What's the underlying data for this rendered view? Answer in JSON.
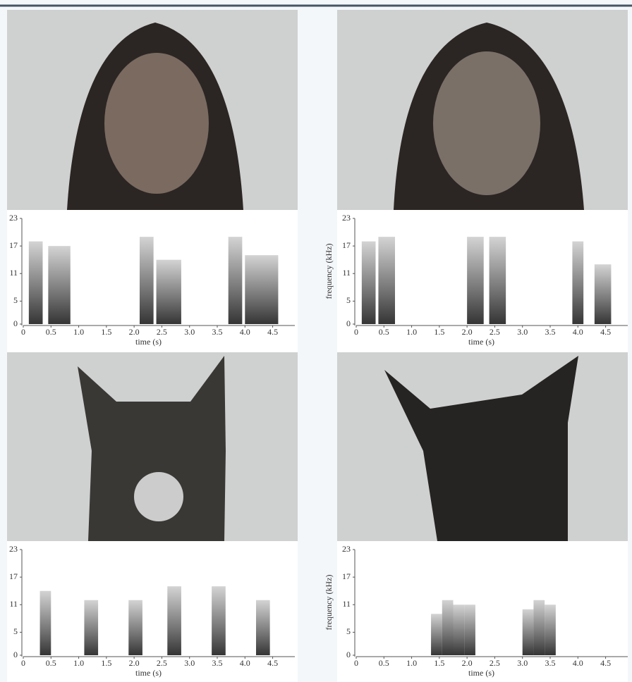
{
  "chart_data": [
    {
      "type": "spectrogram",
      "xlabel": "time (s)",
      "xlim": [
        0,
        4.9
      ],
      "ylim": [
        0,
        23
      ],
      "xticks": [
        0,
        0.5,
        {
          "value": 1,
          "label": "1.0"
        },
        1.5,
        {
          "value": 2,
          "label": "2.0"
        },
        2.5,
        {
          "value": 3,
          "label": "3.0"
        },
        3.5,
        {
          "value": 4,
          "label": "4.0"
        },
        4.5
      ],
      "yticks": [
        0,
        5,
        11,
        17,
        23
      ],
      "x_start": [
        0.1,
        0.45,
        2.1,
        2.4,
        3.7,
        4.0
      ],
      "x_end": [
        0.35,
        0.85,
        2.35,
        2.85,
        3.95,
        4.6
      ],
      "values": [
        18,
        17,
        19,
        14,
        19,
        15
      ]
    },
    {
      "type": "spectrogram",
      "xlabel": "time (s)",
      "ylabel": "frequency (kHz)",
      "xlim": [
        0,
        4.9
      ],
      "ylim": [
        0,
        23
      ],
      "xticks": [
        0,
        0.5,
        {
          "value": 1,
          "label": "1.0"
        },
        1.5,
        {
          "value": 2,
          "label": "2.0"
        },
        2.5,
        {
          "value": 3,
          "label": "3.0"
        },
        3.5,
        {
          "value": 4,
          "label": "4.0"
        },
        4.5
      ],
      "yticks": [
        0,
        5,
        11,
        17,
        23
      ],
      "x_start": [
        0.1,
        0.4,
        2.0,
        2.4,
        3.9,
        4.3
      ],
      "x_end": [
        0.35,
        0.7,
        2.3,
        2.7,
        4.1,
        4.6
      ],
      "values": [
        18,
        19,
        19,
        19,
        18,
        13
      ]
    },
    {
      "type": "spectrogram",
      "xlabel": "time (s)",
      "xlim": [
        0,
        4.9
      ],
      "ylim": [
        0,
        23
      ],
      "xticks": [
        0,
        0.5,
        {
          "value": 1,
          "label": "1.0"
        },
        1.5,
        {
          "value": 2,
          "label": "2.0"
        },
        2.5,
        {
          "value": 3,
          "label": "3.0"
        },
        3.5,
        {
          "value": 4,
          "label": "4.0"
        },
        4.5
      ],
      "yticks": [
        0,
        5,
        11,
        17,
        23
      ],
      "x_start": [
        0.3,
        1.1,
        1.9,
        2.6,
        3.4,
        4.2
      ],
      "x_end": [
        0.5,
        1.35,
        2.15,
        2.85,
        3.65,
        4.45
      ],
      "values": [
        14,
        12,
        12,
        15,
        15,
        12
      ]
    },
    {
      "type": "spectrogram",
      "xlabel": "time (s)",
      "ylabel": "frequency (kHz)",
      "xlim": [
        0,
        4.9
      ],
      "ylim": [
        0,
        23
      ],
      "xticks": [
        0,
        0.5,
        {
          "value": 1,
          "label": "1.0"
        },
        1.5,
        {
          "value": 2,
          "label": "2.0"
        },
        2.5,
        {
          "value": 3,
          "label": "3.0"
        },
        3.5,
        {
          "value": 4,
          "label": "4.0"
        },
        4.5
      ],
      "yticks": [
        0,
        5,
        11,
        17,
        23
      ],
      "x_start": [
        1.35,
        1.55,
        1.75,
        1.95,
        3.0,
        3.2,
        3.4
      ],
      "x_end": [
        1.55,
        1.75,
        1.95,
        2.15,
        3.2,
        3.4,
        3.6
      ],
      "values": [
        9,
        12,
        11,
        11,
        10,
        12,
        11
      ]
    }
  ]
}
